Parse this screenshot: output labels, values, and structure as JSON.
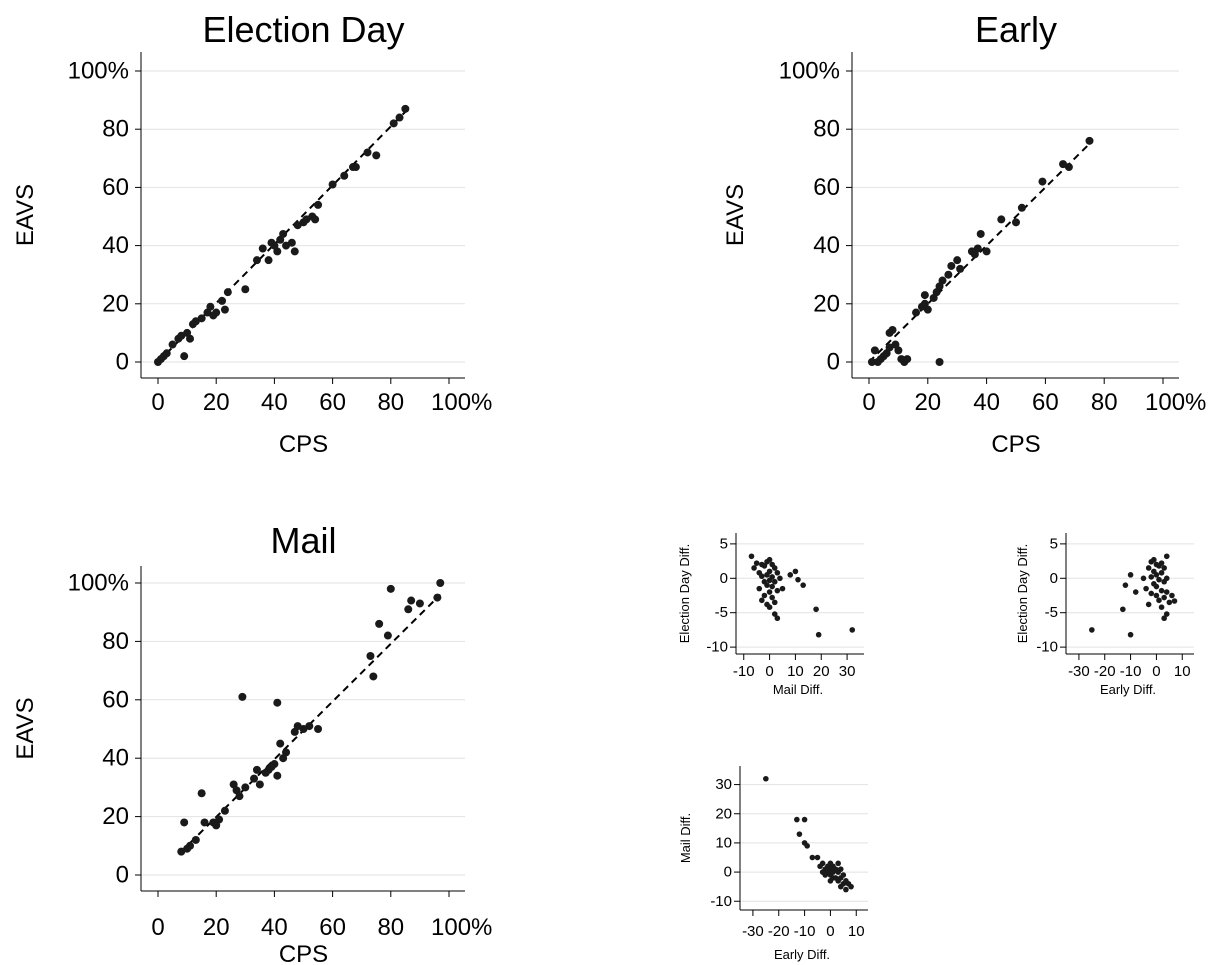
{
  "chart_data": [
    {
      "id": "election_day",
      "type": "scatter",
      "title": "Election Day",
      "xlabel": "CPS",
      "ylabel": "EAVS",
      "xlim": [
        0,
        100
      ],
      "ylim": [
        0,
        100
      ],
      "x_ticks": [
        "0",
        "20",
        "40",
        "60",
        "80",
        "100%"
      ],
      "y_ticks": [
        "0",
        "20",
        "40",
        "60",
        "80",
        "100%"
      ],
      "grid": true,
      "fit_line": {
        "style": "dashed",
        "from": [
          0,
          0
        ],
        "to": [
          85,
          86
        ]
      },
      "points": [
        [
          0,
          0
        ],
        [
          1,
          1
        ],
        [
          2,
          2
        ],
        [
          3,
          3
        ],
        [
          5,
          6
        ],
        [
          7,
          8
        ],
        [
          8,
          9
        ],
        [
          9,
          2
        ],
        [
          10,
          10
        ],
        [
          11,
          8
        ],
        [
          12,
          13
        ],
        [
          13,
          14
        ],
        [
          15,
          15
        ],
        [
          17,
          17
        ],
        [
          18,
          19
        ],
        [
          19,
          16
        ],
        [
          20,
          17
        ],
        [
          22,
          21
        ],
        [
          23,
          18
        ],
        [
          24,
          24
        ],
        [
          30,
          25
        ],
        [
          34,
          35
        ],
        [
          36,
          39
        ],
        [
          38,
          35
        ],
        [
          39,
          41
        ],
        [
          40,
          40
        ],
        [
          41,
          38
        ],
        [
          42,
          42
        ],
        [
          43,
          44
        ],
        [
          44,
          40
        ],
        [
          46,
          41
        ],
        [
          47,
          38
        ],
        [
          48,
          47
        ],
        [
          50,
          48
        ],
        [
          51,
          49
        ],
        [
          53,
          50
        ],
        [
          54,
          49
        ],
        [
          55,
          54
        ],
        [
          60,
          61
        ],
        [
          64,
          64
        ],
        [
          67,
          67
        ],
        [
          68,
          67
        ],
        [
          72,
          72
        ],
        [
          75,
          71
        ],
        [
          81,
          82
        ],
        [
          83,
          84
        ],
        [
          85,
          87
        ]
      ]
    },
    {
      "id": "early",
      "type": "scatter",
      "title": "Early",
      "xlabel": "CPS",
      "ylabel": "EAVS",
      "xlim": [
        0,
        100
      ],
      "ylim": [
        0,
        100
      ],
      "x_ticks": [
        "0",
        "20",
        "40",
        "60",
        "80",
        "100%"
      ],
      "y_ticks": [
        "0",
        "20",
        "40",
        "60",
        "80",
        "100%"
      ],
      "grid": true,
      "fit_line": {
        "style": "dashed",
        "from": [
          0,
          0
        ],
        "to": [
          76,
          76
        ]
      },
      "points": [
        [
          1,
          0
        ],
        [
          2,
          4
        ],
        [
          3,
          0
        ],
        [
          4,
          1
        ],
        [
          5,
          2
        ],
        [
          6,
          3
        ],
        [
          7,
          5
        ],
        [
          7,
          10
        ],
        [
          8,
          11
        ],
        [
          9,
          6
        ],
        [
          10,
          4
        ],
        [
          11,
          1
        ],
        [
          12,
          0
        ],
        [
          13,
          1
        ],
        [
          16,
          17
        ],
        [
          18,
          19
        ],
        [
          19,
          20
        ],
        [
          19,
          23
        ],
        [
          20,
          18
        ],
        [
          22,
          22
        ],
        [
          23,
          24
        ],
        [
          24,
          0
        ],
        [
          24,
          26
        ],
        [
          25,
          28
        ],
        [
          27,
          30
        ],
        [
          28,
          33
        ],
        [
          30,
          35
        ],
        [
          31,
          32
        ],
        [
          35,
          38
        ],
        [
          36,
          37
        ],
        [
          37,
          39
        ],
        [
          38,
          44
        ],
        [
          40,
          38
        ],
        [
          45,
          49
        ],
        [
          50,
          48
        ],
        [
          52,
          53
        ],
        [
          59,
          62
        ],
        [
          66,
          68
        ],
        [
          68,
          67
        ],
        [
          75,
          76
        ]
      ]
    },
    {
      "id": "mail",
      "type": "scatter",
      "title": "Mail",
      "xlabel": "CPS",
      "ylabel": "EAVS",
      "xlim": [
        0,
        100
      ],
      "ylim": [
        0,
        100
      ],
      "x_ticks": [
        "0",
        "20",
        "40",
        "60",
        "80",
        "100%"
      ],
      "y_ticks": [
        "0",
        "20",
        "40",
        "60",
        "80",
        "100%"
      ],
      "grid": true,
      "fit_line": {
        "style": "dashed",
        "from": [
          8,
          8
        ],
        "to": [
          97,
          96
        ]
      },
      "points": [
        [
          8,
          8
        ],
        [
          9,
          18
        ],
        [
          10,
          9
        ],
        [
          11,
          10
        ],
        [
          13,
          12
        ],
        [
          15,
          28
        ],
        [
          16,
          18
        ],
        [
          19,
          18
        ],
        [
          20,
          17
        ],
        [
          21,
          19
        ],
        [
          23,
          22
        ],
        [
          26,
          31
        ],
        [
          27,
          29
        ],
        [
          28,
          27
        ],
        [
          29,
          61
        ],
        [
          30,
          30
        ],
        [
          33,
          33
        ],
        [
          34,
          36
        ],
        [
          35,
          31
        ],
        [
          37,
          35
        ],
        [
          38,
          36
        ],
        [
          39,
          37
        ],
        [
          40,
          38
        ],
        [
          41,
          34
        ],
        [
          41,
          59
        ],
        [
          42,
          45
        ],
        [
          43,
          40
        ],
        [
          44,
          42
        ],
        [
          47,
          49
        ],
        [
          48,
          51
        ],
        [
          50,
          50
        ],
        [
          52,
          51
        ],
        [
          55,
          50
        ],
        [
          73,
          75
        ],
        [
          74,
          68
        ],
        [
          76,
          86
        ],
        [
          79,
          82
        ],
        [
          80,
          98
        ],
        [
          86,
          91
        ],
        [
          87,
          94
        ],
        [
          90,
          93
        ],
        [
          96,
          95
        ],
        [
          97,
          100
        ]
      ]
    },
    {
      "id": "mail_vs_eday",
      "type": "scatter",
      "xlabel": "Mail Diff.",
      "ylabel": "Election Day Diff.",
      "xlim": [
        -13,
        35
      ],
      "ylim": [
        -11,
        6
      ],
      "x_ticks": [
        "-10",
        "0",
        "10",
        "20",
        "30"
      ],
      "x_tick_values": [
        -10,
        0,
        10,
        20,
        30
      ],
      "y_ticks": [
        "-10",
        "-5",
        "0",
        "5"
      ],
      "y_tick_values": [
        -10,
        -5,
        0,
        5
      ],
      "grid": true,
      "points": [
        [
          -7,
          3.2
        ],
        [
          -6,
          1.5
        ],
        [
          -5,
          2.2
        ],
        [
          -4,
          0.8
        ],
        [
          -4,
          -1.5
        ],
        [
          -3,
          2.0
        ],
        [
          -3,
          0.3
        ],
        [
          -3,
          -3.2
        ],
        [
          -2,
          1.8
        ],
        [
          -2,
          -0.5
        ],
        [
          -2,
          -2.5
        ],
        [
          -1,
          2.4
        ],
        [
          -1,
          0.5
        ],
        [
          -1,
          -1.0
        ],
        [
          -1,
          -3.8
        ],
        [
          0,
          2.7
        ],
        [
          0,
          1.0
        ],
        [
          0,
          -0.3
        ],
        [
          0,
          -2.0
        ],
        [
          0,
          -4.2
        ],
        [
          1,
          2.0
        ],
        [
          1,
          0.2
        ],
        [
          1,
          -1.2
        ],
        [
          1,
          -2.8
        ],
        [
          2,
          1.5
        ],
        [
          2,
          -0.5
        ],
        [
          2,
          -3.5
        ],
        [
          2,
          -5.2
        ],
        [
          3,
          0.8
        ],
        [
          3,
          -1.8
        ],
        [
          3,
          -5.8
        ],
        [
          4,
          0.0
        ],
        [
          5,
          -1.5
        ],
        [
          8,
          0.5
        ],
        [
          10,
          1.0
        ],
        [
          11,
          -0.2
        ],
        [
          13,
          -1.0
        ],
        [
          18,
          -4.5
        ],
        [
          19,
          -8.2
        ],
        [
          32,
          -7.5
        ]
      ]
    },
    {
      "id": "early_vs_eday",
      "type": "scatter",
      "xlabel": "Early Diff.",
      "ylabel": "Election Day Diff.",
      "xlim": [
        -35,
        13
      ],
      "ylim": [
        -11,
        6
      ],
      "x_ticks": [
        "-30",
        "-20",
        "-10",
        "0",
        "10"
      ],
      "x_tick_values": [
        -30,
        -20,
        -10,
        0,
        10
      ],
      "y_ticks": [
        "-10",
        "-5",
        "0",
        "5"
      ],
      "y_tick_values": [
        -10,
        -5,
        0,
        5
      ],
      "grid": true,
      "points": [
        [
          -25,
          -7.5
        ],
        [
          -13,
          -4.5
        ],
        [
          -12,
          -1.0
        ],
        [
          -10,
          0.5
        ],
        [
          -10,
          -8.2
        ],
        [
          -8,
          -2.0
        ],
        [
          -5,
          0.0
        ],
        [
          -4,
          -1.5
        ],
        [
          -3,
          1.5
        ],
        [
          -3,
          -3.8
        ],
        [
          -2,
          2.4
        ],
        [
          -2,
          0.2
        ],
        [
          -2,
          -2.2
        ],
        [
          -1,
          2.7
        ],
        [
          -1,
          1.0
        ],
        [
          -1,
          -0.8
        ],
        [
          0,
          2.0
        ],
        [
          0,
          0.5
        ],
        [
          0,
          -1.2
        ],
        [
          0,
          -2.5
        ],
        [
          1,
          1.8
        ],
        [
          1,
          -0.2
        ],
        [
          1,
          -3.2
        ],
        [
          2,
          2.2
        ],
        [
          2,
          0.8
        ],
        [
          2,
          -1.8
        ],
        [
          2,
          -4.2
        ],
        [
          3,
          1.5
        ],
        [
          3,
          -0.5
        ],
        [
          3,
          -2.8
        ],
        [
          3,
          -5.8
        ],
        [
          4,
          3.2
        ],
        [
          4,
          0.0
        ],
        [
          4,
          -2.0
        ],
        [
          4,
          -5.2
        ],
        [
          5,
          -3.5
        ],
        [
          6,
          -2.5
        ],
        [
          7,
          -3.3
        ]
      ]
    },
    {
      "id": "early_vs_mail",
      "type": "scatter",
      "xlabel": "Early Diff.",
      "ylabel": "Mail Diff.",
      "xlim": [
        -35,
        13
      ],
      "ylim": [
        -13,
        35
      ],
      "x_ticks": [
        "-30",
        "-20",
        "-10",
        "0",
        "10"
      ],
      "x_tick_values": [
        -30,
        -20,
        -10,
        0,
        10
      ],
      "y_ticks": [
        "-10",
        "0",
        "10",
        "20",
        "30"
      ],
      "y_tick_values": [
        -10,
        0,
        10,
        20,
        30
      ],
      "grid": true,
      "points": [
        [
          -25,
          32
        ],
        [
          -13,
          18
        ],
        [
          -12,
          13
        ],
        [
          -10,
          18
        ],
        [
          -10,
          10
        ],
        [
          -9,
          9
        ],
        [
          -7,
          5
        ],
        [
          -5,
          5
        ],
        [
          -4,
          2
        ],
        [
          -3,
          3
        ],
        [
          -3,
          0
        ],
        [
          -2,
          1
        ],
        [
          -2,
          -1
        ],
        [
          -1,
          2
        ],
        [
          -1,
          0
        ],
        [
          0,
          3
        ],
        [
          0,
          1
        ],
        [
          0,
          -1
        ],
        [
          0,
          -3
        ],
        [
          1,
          2
        ],
        [
          1,
          0
        ],
        [
          1,
          -2
        ],
        [
          2,
          1
        ],
        [
          2,
          -2
        ],
        [
          3,
          3
        ],
        [
          3,
          0
        ],
        [
          3,
          -3
        ],
        [
          4,
          1
        ],
        [
          4,
          -2
        ],
        [
          4,
          -5
        ],
        [
          5,
          -1
        ],
        [
          5,
          -4
        ],
        [
          6,
          -3
        ],
        [
          6,
          -6
        ],
        [
          7,
          -4
        ],
        [
          8,
          -5
        ]
      ]
    }
  ]
}
